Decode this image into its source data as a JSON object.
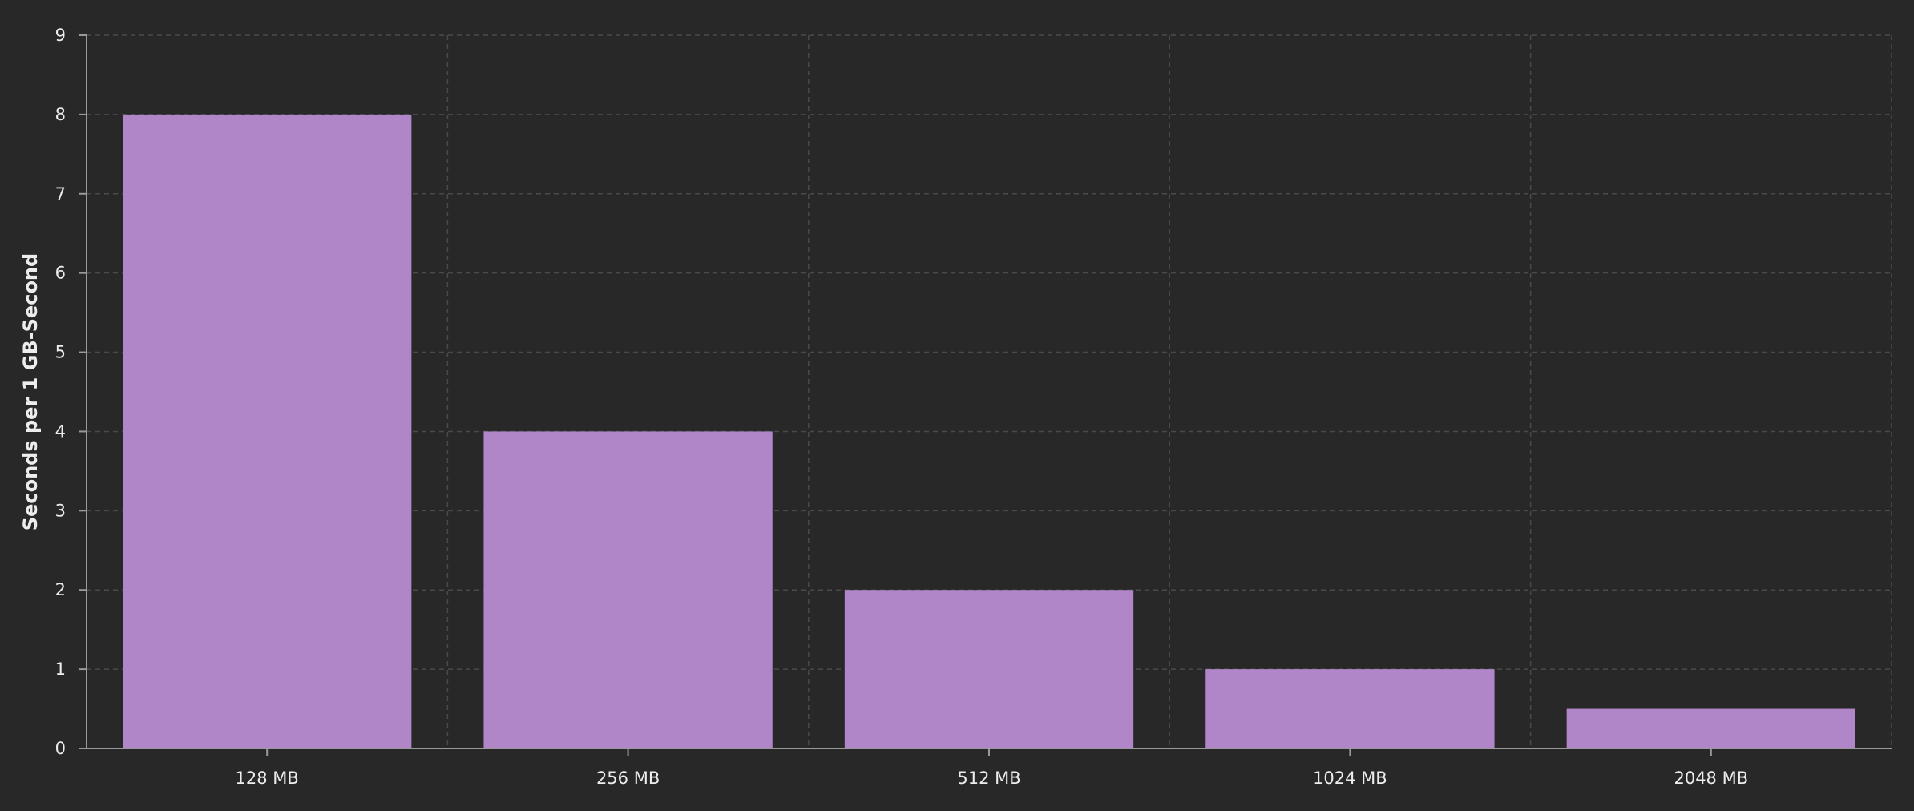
{
  "chart_data": {
    "type": "bar",
    "categories": [
      "128 MB",
      "256 MB",
      "512 MB",
      "1024 MB",
      "2048 MB"
    ],
    "values": [
      8,
      4,
      2,
      1,
      0.5
    ],
    "title": "",
    "xlabel": "",
    "ylabel": "Seconds per 1 GB-Second",
    "ylim": [
      0,
      9
    ],
    "yticks": [
      0,
      1,
      2,
      3,
      4,
      5,
      6,
      7,
      8,
      9
    ],
    "grid": true,
    "grid_style": "dashed",
    "legend": "none"
  },
  "colors": {
    "background": "#282828",
    "bar": "#b086c9",
    "axis": "#9a9a9a",
    "grid": "#4a4a4a",
    "text": "#ededed"
  }
}
